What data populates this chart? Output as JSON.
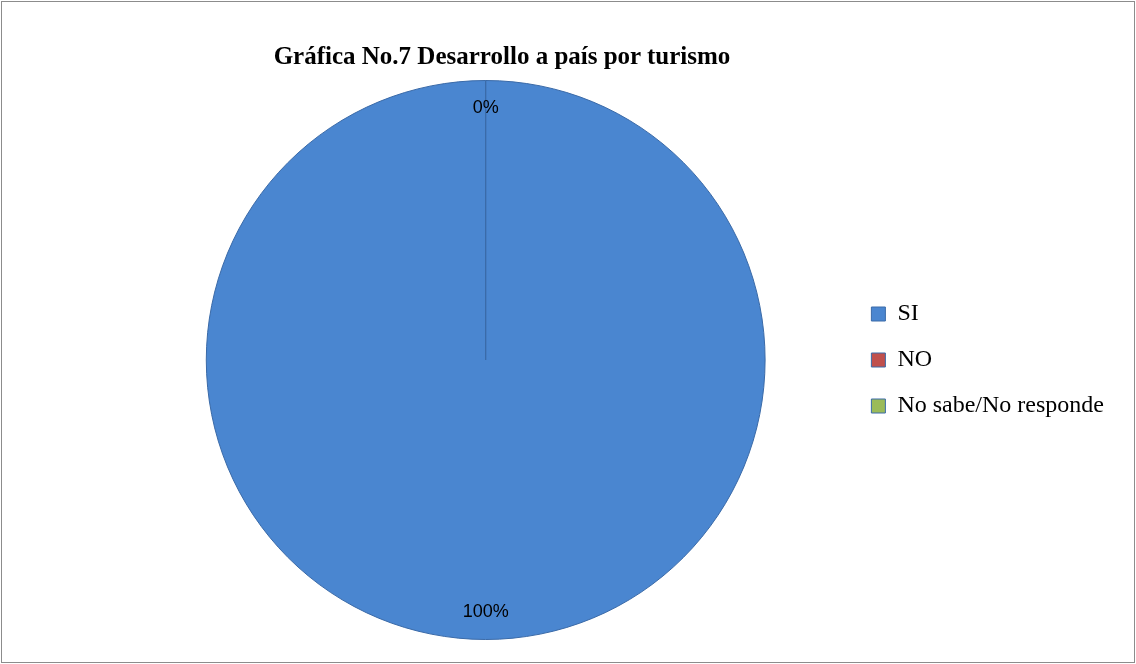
{
  "chart_data": {
    "type": "pie",
    "title": "Gráfica No.7 Desarrollo a país por turismo",
    "categories": [
      "SI",
      "NO",
      "No sabe/No responde"
    ],
    "values": [
      100,
      0,
      0
    ],
    "colors": [
      "#4a86d0",
      "#c0504d",
      "#9bbb59"
    ],
    "value_labels": [
      "100%",
      "0%",
      null
    ],
    "legend": "right"
  }
}
